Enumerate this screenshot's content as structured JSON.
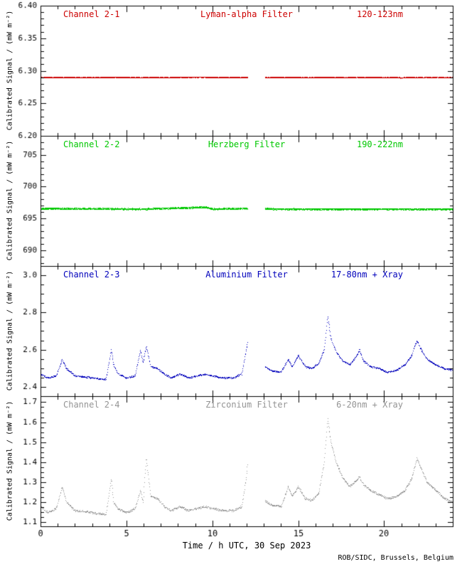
{
  "chart_data": {
    "type": "scatter",
    "title": "",
    "xlabel": "Time / h UTC, 30 Sep 2023",
    "credit": "ROB/SIDC, Brussels, Belgium",
    "x_range": [
      0,
      24
    ],
    "x_major_ticks": [
      0,
      5,
      10,
      15,
      20
    ],
    "x_minor_step": 1,
    "grid": false,
    "legend": "none",
    "gap": [
      12.05,
      13.05
    ],
    "panels": [
      {
        "channel": "Channel 2-1",
        "filter": "Lyman-alpha Filter",
        "band": "120-123nm",
        "color": "#cc0000",
        "ylabel": "Calibrated Signal / (mW m⁻²)",
        "y_range": [
          6.2,
          6.4
        ],
        "y_ticks": [
          6.4,
          6.35,
          6.3,
          6.25,
          6.2
        ],
        "y_tick_labels": [
          "6.40",
          "6.35",
          "6.30",
          "6.25",
          "6.20"
        ],
        "y_minor": 0.01,
        "noise": 0.0006,
        "dense": true,
        "points": [
          [
            0,
            6.29
          ],
          [
            8,
            6.29
          ],
          [
            9,
            6.2906
          ],
          [
            10,
            6.2902
          ],
          [
            11,
            6.29
          ],
          [
            20.8,
            6.29
          ],
          [
            21,
            6.2894
          ],
          [
            21.2,
            6.29
          ],
          [
            24,
            6.29
          ]
        ]
      },
      {
        "channel": "Channel 2-2",
        "filter": "Herzberg Filter",
        "band": "190-222nm",
        "color": "#00c800",
        "ylabel": "Calibrated Signal / (mW m⁻²)",
        "y_range": [
          687.5,
          708.0
        ],
        "y_ticks": [
          705,
          700,
          695,
          690
        ],
        "y_tick_labels": [
          "705",
          "700",
          "695",
          "690"
        ],
        "y_minor": 1,
        "noise": 0.13,
        "dense": true,
        "points": [
          [
            0,
            696.6
          ],
          [
            6,
            696.5
          ],
          [
            9.6,
            696.8
          ],
          [
            10,
            696.5
          ],
          [
            12,
            696.6
          ],
          [
            14,
            696.5
          ],
          [
            24,
            696.5
          ]
        ]
      },
      {
        "channel": "Channel 2-3",
        "filter": "Aluminium Filter",
        "band": "17-80nm + Xray",
        "color": "#0000bb",
        "ylabel": "Calibrated Signal / (mW m⁻²)",
        "y_range": [
          2.35,
          3.05
        ],
        "y_ticks": [
          3.0,
          2.8,
          2.6,
          2.4
        ],
        "y_tick_labels": [
          "3.0",
          "2.8",
          "2.6",
          "2.4"
        ],
        "y_minor": 0.05,
        "noise": 0.004,
        "dense": false,
        "points": [
          [
            0,
            2.47
          ],
          [
            0.4,
            2.45
          ],
          [
            0.9,
            2.46
          ],
          [
            1.25,
            2.55
          ],
          [
            1.5,
            2.5
          ],
          [
            2,
            2.46
          ],
          [
            3,
            2.45
          ],
          [
            3.8,
            2.44
          ],
          [
            4.1,
            2.6
          ],
          [
            4.25,
            2.52
          ],
          [
            4.5,
            2.47
          ],
          [
            5,
            2.45
          ],
          [
            5.5,
            2.46
          ],
          [
            5.8,
            2.6
          ],
          [
            5.95,
            2.53
          ],
          [
            6.15,
            2.62
          ],
          [
            6.4,
            2.51
          ],
          [
            6.8,
            2.5
          ],
          [
            7.2,
            2.47
          ],
          [
            7.6,
            2.45
          ],
          [
            8.1,
            2.47
          ],
          [
            8.6,
            2.45
          ],
          [
            9.1,
            2.46
          ],
          [
            9.6,
            2.47
          ],
          [
            10,
            2.46
          ],
          [
            10.6,
            2.45
          ],
          [
            11.2,
            2.45
          ],
          [
            11.7,
            2.47
          ],
          [
            11.95,
            2.6
          ],
          [
            12.05,
            2.64
          ],
          [
            13.05,
            2.51
          ],
          [
            13.4,
            2.49
          ],
          [
            14,
            2.48
          ],
          [
            14.4,
            2.55
          ],
          [
            14.65,
            2.51
          ],
          [
            15,
            2.57
          ],
          [
            15.4,
            2.51
          ],
          [
            15.8,
            2.5
          ],
          [
            16.2,
            2.53
          ],
          [
            16.5,
            2.6
          ],
          [
            16.7,
            2.78
          ],
          [
            16.9,
            2.66
          ],
          [
            17.2,
            2.59
          ],
          [
            17.6,
            2.54
          ],
          [
            18,
            2.52
          ],
          [
            18.4,
            2.57
          ],
          [
            18.55,
            2.6
          ],
          [
            18.8,
            2.54
          ],
          [
            19.2,
            2.51
          ],
          [
            19.7,
            2.5
          ],
          [
            20.2,
            2.48
          ],
          [
            20.7,
            2.49
          ],
          [
            21.2,
            2.52
          ],
          [
            21.6,
            2.57
          ],
          [
            21.9,
            2.65
          ],
          [
            22.1,
            2.61
          ],
          [
            22.5,
            2.55
          ],
          [
            23,
            2.52
          ],
          [
            23.5,
            2.5
          ],
          [
            24,
            2.49
          ]
        ]
      },
      {
        "channel": "Channel 2-4",
        "filter": "Zirconium Filter",
        "band": "6-20nm + Xray",
        "color": "#949494",
        "ylabel": "Calibrated Signal / (mW m⁻²)",
        "y_range": [
          1.08,
          1.73
        ],
        "y_ticks": [
          1.7,
          1.6,
          1.5,
          1.4,
          1.3,
          1.2,
          1.1
        ],
        "y_tick_labels": [
          "1.7",
          "1.6",
          "1.5",
          "1.4",
          "1.3",
          "1.2",
          "1.1"
        ],
        "y_minor": 0.025,
        "noise": 0.005,
        "dense": false,
        "points": [
          [
            0,
            1.18
          ],
          [
            0.4,
            1.15
          ],
          [
            0.9,
            1.17
          ],
          [
            1.25,
            1.28
          ],
          [
            1.5,
            1.2
          ],
          [
            2,
            1.16
          ],
          [
            3,
            1.15
          ],
          [
            3.8,
            1.14
          ],
          [
            4.1,
            1.32
          ],
          [
            4.25,
            1.2
          ],
          [
            4.5,
            1.17
          ],
          [
            5,
            1.15
          ],
          [
            5.5,
            1.17
          ],
          [
            5.8,
            1.26
          ],
          [
            5.95,
            1.2
          ],
          [
            6.15,
            1.42
          ],
          [
            6.4,
            1.23
          ],
          [
            6.8,
            1.22
          ],
          [
            7.2,
            1.18
          ],
          [
            7.6,
            1.16
          ],
          [
            8.1,
            1.18
          ],
          [
            8.6,
            1.16
          ],
          [
            9.1,
            1.17
          ],
          [
            9.6,
            1.18
          ],
          [
            10,
            1.17
          ],
          [
            10.6,
            1.16
          ],
          [
            11.2,
            1.16
          ],
          [
            11.7,
            1.18
          ],
          [
            11.95,
            1.32
          ],
          [
            12.05,
            1.4
          ],
          [
            13.05,
            1.21
          ],
          [
            13.4,
            1.19
          ],
          [
            14,
            1.18
          ],
          [
            14.4,
            1.28
          ],
          [
            14.65,
            1.23
          ],
          [
            15,
            1.28
          ],
          [
            15.4,
            1.22
          ],
          [
            15.8,
            1.21
          ],
          [
            16.2,
            1.25
          ],
          [
            16.5,
            1.4
          ],
          [
            16.7,
            1.62
          ],
          [
            16.9,
            1.5
          ],
          [
            17.2,
            1.4
          ],
          [
            17.6,
            1.32
          ],
          [
            18,
            1.28
          ],
          [
            18.4,
            1.31
          ],
          [
            18.55,
            1.33
          ],
          [
            18.8,
            1.29
          ],
          [
            19.2,
            1.26
          ],
          [
            19.7,
            1.24
          ],
          [
            20.2,
            1.22
          ],
          [
            20.7,
            1.23
          ],
          [
            21.2,
            1.26
          ],
          [
            21.6,
            1.32
          ],
          [
            21.9,
            1.42
          ],
          [
            22.1,
            1.38
          ],
          [
            22.5,
            1.3
          ],
          [
            23,
            1.26
          ],
          [
            23.5,
            1.22
          ],
          [
            24,
            1.2
          ]
        ]
      }
    ]
  }
}
